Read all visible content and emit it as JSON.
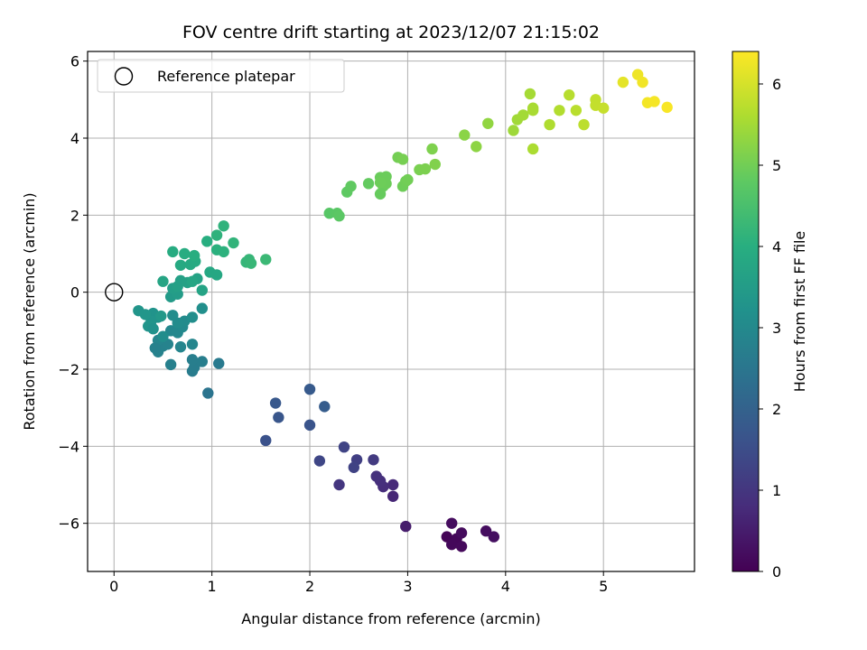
{
  "chart_data": {
    "type": "scatter",
    "title": "FOV centre drift starting at 2023/12/07 21:15:02",
    "xlabel": "Angular distance from reference (arcmin)",
    "ylabel": "Rotation from reference (arcmin)",
    "xlim": [
      -0.27,
      5.93
    ],
    "ylim": [
      -7.25,
      6.25
    ],
    "xticks": [
      0,
      1,
      2,
      3,
      4,
      5
    ],
    "yticks": [
      -6,
      -4,
      -2,
      0,
      2,
      4,
      6
    ],
    "grid": true,
    "colormap": "viridis",
    "colorbar": {
      "label": "Hours from first FF file",
      "range": [
        0,
        6.4
      ],
      "ticks": [
        0,
        1,
        2,
        3,
        4,
        5,
        6
      ]
    },
    "legend": {
      "placement": "top-left",
      "entries": [
        "Reference platepar"
      ]
    },
    "reference_point": {
      "x": 0,
      "y": 0,
      "name": "Reference platepar"
    },
    "points": [
      {
        "x": 3.4,
        "y": -6.35,
        "h": 0.05
      },
      {
        "x": 3.5,
        "y": -6.4,
        "h": 0.1
      },
      {
        "x": 3.45,
        "y": -6.55,
        "h": 0.12
      },
      {
        "x": 3.55,
        "y": -6.6,
        "h": 0.15
      },
      {
        "x": 3.55,
        "y": -6.25,
        "h": 0.18
      },
      {
        "x": 3.45,
        "y": -6.0,
        "h": 0.2
      },
      {
        "x": 3.8,
        "y": -6.2,
        "h": 0.22
      },
      {
        "x": 3.88,
        "y": -6.35,
        "h": 0.25
      },
      {
        "x": 2.98,
        "y": -6.08,
        "h": 0.5
      },
      {
        "x": 2.85,
        "y": -5.3,
        "h": 0.7
      },
      {
        "x": 2.85,
        "y": -5.0,
        "h": 0.75
      },
      {
        "x": 2.75,
        "y": -5.05,
        "h": 0.8
      },
      {
        "x": 2.72,
        "y": -4.9,
        "h": 0.85
      },
      {
        "x": 2.68,
        "y": -4.78,
        "h": 0.9
      },
      {
        "x": 2.3,
        "y": -5.0,
        "h": 1.0
      },
      {
        "x": 2.65,
        "y": -4.35,
        "h": 1.1
      },
      {
        "x": 2.48,
        "y": -4.35,
        "h": 1.2
      },
      {
        "x": 2.45,
        "y": -4.55,
        "h": 1.25
      },
      {
        "x": 2.35,
        "y": -4.02,
        "h": 1.3
      },
      {
        "x": 2.1,
        "y": -4.38,
        "h": 1.35
      },
      {
        "x": 1.55,
        "y": -3.85,
        "h": 1.6
      },
      {
        "x": 2.0,
        "y": -3.45,
        "h": 1.65
      },
      {
        "x": 1.68,
        "y": -3.25,
        "h": 1.7
      },
      {
        "x": 1.65,
        "y": -2.88,
        "h": 1.75
      },
      {
        "x": 2.0,
        "y": -2.52,
        "h": 1.8
      },
      {
        "x": 2.15,
        "y": -2.97,
        "h": 1.85
      },
      {
        "x": 0.96,
        "y": -2.62,
        "h": 2.45
      },
      {
        "x": 1.07,
        "y": -1.85,
        "h": 2.6
      },
      {
        "x": 0.8,
        "y": -2.05,
        "h": 2.65
      },
      {
        "x": 0.82,
        "y": -1.95,
        "h": 2.68
      },
      {
        "x": 0.9,
        "y": -1.8,
        "h": 2.7
      },
      {
        "x": 0.8,
        "y": -1.75,
        "h": 2.72
      },
      {
        "x": 0.58,
        "y": -1.88,
        "h": 2.75
      },
      {
        "x": 0.45,
        "y": -1.55,
        "h": 2.8
      },
      {
        "x": 0.5,
        "y": -1.4,
        "h": 2.82
      },
      {
        "x": 0.55,
        "y": -1.35,
        "h": 2.85
      },
      {
        "x": 0.45,
        "y": -1.25,
        "h": 2.88
      },
      {
        "x": 0.68,
        "y": -1.42,
        "h": 2.9
      },
      {
        "x": 0.8,
        "y": -1.35,
        "h": 2.92
      },
      {
        "x": 0.58,
        "y": -1.0,
        "h": 2.95
      },
      {
        "x": 0.65,
        "y": -1.05,
        "h": 2.98
      },
      {
        "x": 0.7,
        "y": -0.9,
        "h": 3.0
      },
      {
        "x": 0.72,
        "y": -0.75,
        "h": 3.05
      },
      {
        "x": 0.65,
        "y": -0.8,
        "h": 3.08
      },
      {
        "x": 0.6,
        "y": -0.6,
        "h": 3.1
      },
      {
        "x": 0.8,
        "y": -0.65,
        "h": 3.12
      },
      {
        "x": 0.9,
        "y": -0.42,
        "h": 3.15
      },
      {
        "x": 0.45,
        "y": -0.65,
        "h": 3.2
      },
      {
        "x": 0.4,
        "y": -0.55,
        "h": 3.25
      },
      {
        "x": 0.38,
        "y": -0.75,
        "h": 3.28
      },
      {
        "x": 0.35,
        "y": -0.88,
        "h": 3.3
      },
      {
        "x": 0.25,
        "y": -0.48,
        "h": 3.32
      },
      {
        "x": 0.32,
        "y": -0.58,
        "h": 3.35
      },
      {
        "x": 0.48,
        "y": -0.62,
        "h": 3.38
      },
      {
        "x": 0.5,
        "y": -1.15,
        "h": 3.1
      },
      {
        "x": 0.4,
        "y": -0.95,
        "h": 3.22
      },
      {
        "x": 0.42,
        "y": -1.45,
        "h": 2.78
      },
      {
        "x": 0.58,
        "y": -0.12,
        "h": 3.45
      },
      {
        "x": 0.65,
        "y": -0.05,
        "h": 3.5
      },
      {
        "x": 0.6,
        "y": 0.1,
        "h": 3.55
      },
      {
        "x": 0.65,
        "y": 0.15,
        "h": 3.6
      },
      {
        "x": 0.68,
        "y": 0.3,
        "h": 3.62
      },
      {
        "x": 0.75,
        "y": 0.25,
        "h": 3.65
      },
      {
        "x": 0.85,
        "y": 0.35,
        "h": 3.68
      },
      {
        "x": 0.9,
        "y": 0.05,
        "h": 3.7
      },
      {
        "x": 0.5,
        "y": 0.28,
        "h": 3.72
      },
      {
        "x": 0.8,
        "y": 0.28,
        "h": 3.75
      },
      {
        "x": 0.98,
        "y": 0.52,
        "h": 3.8
      },
      {
        "x": 1.05,
        "y": 0.45,
        "h": 3.82
      },
      {
        "x": 0.68,
        "y": 0.7,
        "h": 3.85
      },
      {
        "x": 0.78,
        "y": 0.72,
        "h": 3.87
      },
      {
        "x": 0.83,
        "y": 0.8,
        "h": 3.9
      },
      {
        "x": 0.6,
        "y": 1.05,
        "h": 3.92
      },
      {
        "x": 0.72,
        "y": 1.0,
        "h": 3.95
      },
      {
        "x": 0.82,
        "y": 0.95,
        "h": 3.97
      },
      {
        "x": 0.95,
        "y": 1.32,
        "h": 4.0
      },
      {
        "x": 1.05,
        "y": 1.1,
        "h": 4.05
      },
      {
        "x": 1.12,
        "y": 1.05,
        "h": 4.08
      },
      {
        "x": 1.05,
        "y": 1.48,
        "h": 4.1
      },
      {
        "x": 1.12,
        "y": 1.72,
        "h": 4.12
      },
      {
        "x": 1.22,
        "y": 1.28,
        "h": 4.15
      },
      {
        "x": 1.35,
        "y": 0.78,
        "h": 4.2
      },
      {
        "x": 1.38,
        "y": 0.85,
        "h": 4.22
      },
      {
        "x": 1.4,
        "y": 0.75,
        "h": 4.25
      },
      {
        "x": 1.55,
        "y": 0.85,
        "h": 4.3
      },
      {
        "x": 2.2,
        "y": 2.05,
        "h": 4.7
      },
      {
        "x": 2.28,
        "y": 2.05,
        "h": 4.72
      },
      {
        "x": 2.3,
        "y": 1.98,
        "h": 4.75
      },
      {
        "x": 2.38,
        "y": 2.6,
        "h": 4.8
      },
      {
        "x": 2.42,
        "y": 2.75,
        "h": 4.82
      },
      {
        "x": 2.6,
        "y": 2.82,
        "h": 4.85
      },
      {
        "x": 2.72,
        "y": 2.55,
        "h": 4.88
      },
      {
        "x": 2.75,
        "y": 2.75,
        "h": 4.9
      },
      {
        "x": 2.72,
        "y": 2.98,
        "h": 4.92
      },
      {
        "x": 2.78,
        "y": 3.0,
        "h": 4.93
      },
      {
        "x": 2.78,
        "y": 2.82,
        "h": 4.94
      },
      {
        "x": 2.72,
        "y": 2.85,
        "h": 4.95
      },
      {
        "x": 2.95,
        "y": 2.75,
        "h": 4.96
      },
      {
        "x": 2.98,
        "y": 2.88,
        "h": 4.98
      },
      {
        "x": 3.0,
        "y": 2.92,
        "h": 5.0
      },
      {
        "x": 2.9,
        "y": 3.5,
        "h": 5.02
      },
      {
        "x": 2.95,
        "y": 3.45,
        "h": 5.05
      },
      {
        "x": 3.12,
        "y": 3.18,
        "h": 5.08
      },
      {
        "x": 3.18,
        "y": 3.2,
        "h": 5.1
      },
      {
        "x": 3.25,
        "y": 3.72,
        "h": 5.12
      },
      {
        "x": 3.28,
        "y": 3.32,
        "h": 5.15
      },
      {
        "x": 3.58,
        "y": 4.08,
        "h": 5.25
      },
      {
        "x": 3.7,
        "y": 3.78,
        "h": 5.28
      },
      {
        "x": 3.82,
        "y": 4.38,
        "h": 5.32
      },
      {
        "x": 4.08,
        "y": 4.2,
        "h": 5.45
      },
      {
        "x": 4.12,
        "y": 4.48,
        "h": 5.48
      },
      {
        "x": 4.18,
        "y": 4.6,
        "h": 5.5
      },
      {
        "x": 4.25,
        "y": 5.15,
        "h": 5.52
      },
      {
        "x": 4.28,
        "y": 4.78,
        "h": 5.55
      },
      {
        "x": 4.28,
        "y": 4.72,
        "h": 5.56
      },
      {
        "x": 4.28,
        "y": 3.72,
        "h": 5.58
      },
      {
        "x": 4.45,
        "y": 4.35,
        "h": 5.62
      },
      {
        "x": 4.55,
        "y": 4.72,
        "h": 5.65
      },
      {
        "x": 4.65,
        "y": 5.12,
        "h": 5.7
      },
      {
        "x": 4.72,
        "y": 4.72,
        "h": 5.72
      },
      {
        "x": 4.8,
        "y": 4.35,
        "h": 5.75
      },
      {
        "x": 4.92,
        "y": 5.0,
        "h": 5.8
      },
      {
        "x": 4.92,
        "y": 4.85,
        "h": 5.82
      },
      {
        "x": 5.0,
        "y": 4.78,
        "h": 5.85
      },
      {
        "x": 5.2,
        "y": 5.45,
        "h": 6.15
      },
      {
        "x": 5.35,
        "y": 5.65,
        "h": 6.25
      },
      {
        "x": 5.4,
        "y": 5.45,
        "h": 6.28
      },
      {
        "x": 5.45,
        "y": 4.92,
        "h": 6.3
      },
      {
        "x": 5.52,
        "y": 4.95,
        "h": 6.32
      },
      {
        "x": 5.65,
        "y": 4.8,
        "h": 6.35
      }
    ]
  }
}
